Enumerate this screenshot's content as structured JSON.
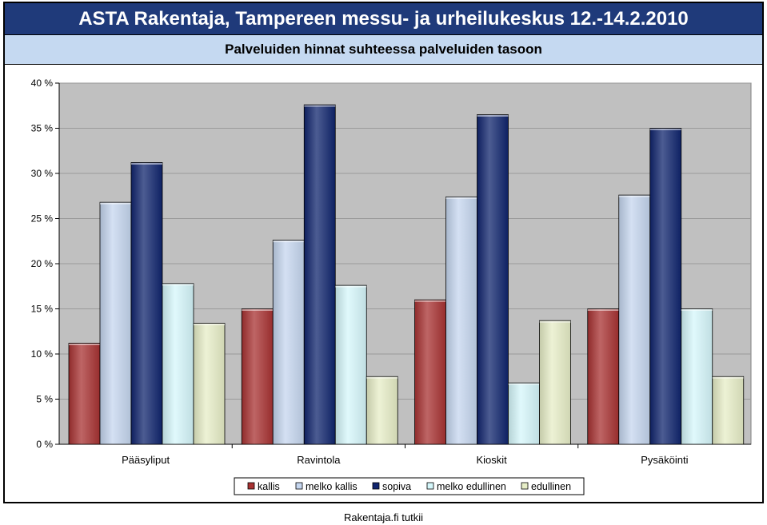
{
  "header": {
    "title": "ASTA Rakentaja, Tampereen messu- ja urheilukeskus 12.-14.2.2010",
    "subtitle": "Palveluiden hinnat suhteessa palveluiden tasoon"
  },
  "footer": {
    "source": "Rakentaja.fi tutkii"
  },
  "colors": {
    "title_bg": "#1f3a7a",
    "subtitle_bg": "#c5d9f1",
    "plot_bg": "#c0c0c0"
  },
  "chart_data": {
    "type": "bar",
    "title": "Palveluiden hinnat suhteessa palveluiden tasoon",
    "categories": [
      "Pääsyliput",
      "Ravintola",
      "Kioskit",
      "Pysäköinti"
    ],
    "series": [
      {
        "name": "kallis",
        "color": "#a83232",
        "values": [
          11.2,
          15.0,
          16.0,
          15.0
        ]
      },
      {
        "name": "melko kallis",
        "color": "#c5d6ef",
        "values": [
          26.8,
          22.6,
          27.4,
          27.6
        ]
      },
      {
        "name": "sopiva",
        "color": "#10256e",
        "values": [
          31.2,
          37.6,
          36.5,
          35.0
        ]
      },
      {
        "name": "melko edullinen",
        "color": "#d5f7fb",
        "values": [
          17.8,
          17.6,
          6.8,
          15.0
        ]
      },
      {
        "name": "edullinen",
        "color": "#e7eec7",
        "values": [
          13.4,
          7.5,
          13.7,
          7.5
        ]
      }
    ],
    "ylim": [
      0,
      40
    ],
    "yticks": [
      0,
      5,
      10,
      15,
      20,
      25,
      30,
      35,
      40
    ],
    "yticklabels": [
      "0 %",
      "5 %",
      "10 %",
      "15 %",
      "20 %",
      "25 %",
      "30 %",
      "35 %",
      "40 %"
    ],
    "grid": true,
    "legend_position": "bottom"
  }
}
